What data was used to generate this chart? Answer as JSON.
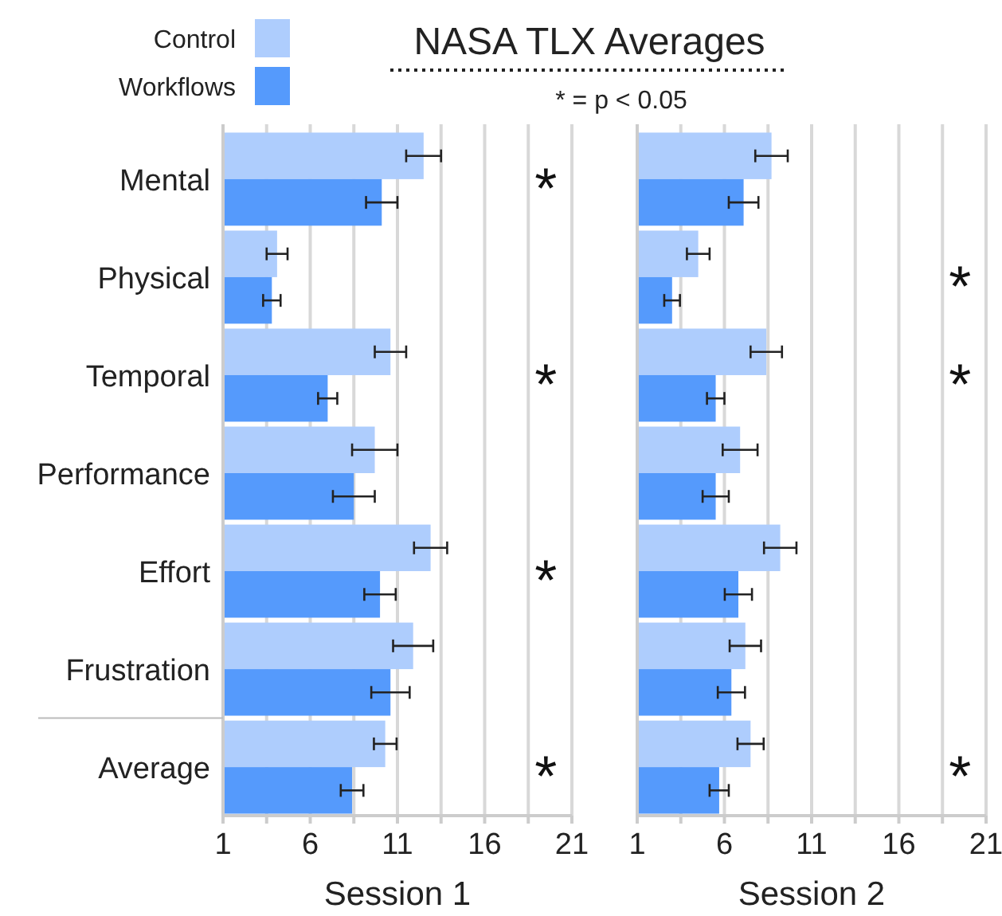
{
  "chart_data": [
    {
      "type": "bar",
      "orientation": "horizontal",
      "title": "NASA TLX Averages",
      "xlabel": "Session 1",
      "categories": [
        "Mental",
        "Physical",
        "Temporal",
        "Performance",
        "Effort",
        "Frustration",
        "Average"
      ],
      "series": [
        {
          "name": "Control",
          "color": "#aecdfd",
          "values": [
            12.5,
            4.1,
            10.6,
            9.7,
            12.9,
            11.9,
            10.3
          ],
          "errors": [
            1.0,
            0.6,
            0.9,
            1.3,
            0.95,
            1.15,
            0.65
          ]
        },
        {
          "name": "Workflows",
          "color": "#559afc",
          "values": [
            10.1,
            3.8,
            7.0,
            8.5,
            10.0,
            10.6,
            8.4
          ],
          "errors": [
            0.9,
            0.5,
            0.55,
            1.2,
            0.9,
            1.1,
            0.65
          ]
        }
      ],
      "xlim": [
        1,
        21
      ],
      "xticks": [
        1,
        {
          "value": 3.5,
          "label": null
        },
        6,
        {
          "value": 8.5,
          "label": null
        },
        11,
        {
          "value": 13.5,
          "label": null
        },
        16,
        {
          "value": 18.5,
          "label": null
        },
        21
      ],
      "grid": "x",
      "legend": "top left",
      "annotations": [
        "* = p < 0.05",
        "*",
        "*",
        "*",
        "*"
      ]
    },
    {
      "type": "bar",
      "orientation": "horizontal",
      "xlabel": "Session 2",
      "categories": [
        null,
        null,
        null,
        null,
        null,
        null,
        null
      ],
      "series": [
        {
          "color": "#aecdfd",
          "values": [
            8.7,
            4.5,
            8.4,
            6.9,
            9.2,
            7.2,
            7.5
          ],
          "errors": [
            0.93,
            0.65,
            0.9,
            1.0,
            0.93,
            0.9,
            0.75
          ]
        },
        {
          "color": "#559afc",
          "values": [
            7.1,
            3.0,
            5.5,
            5.5,
            6.8,
            6.4,
            5.7
          ],
          "errors": [
            0.85,
            0.45,
            0.5,
            0.75,
            0.78,
            0.78,
            0.55
          ]
        }
      ],
      "xlim": [
        1,
        21
      ],
      "xticks": [
        1,
        {
          "value": 3.5,
          "label": null
        },
        6,
        {
          "value": 8.5,
          "label": null
        },
        11,
        {
          "value": 13.5,
          "label": null
        },
        16,
        {
          "value": 18.5,
          "label": null
        },
        21
      ],
      "grid": "x",
      "tick_labels": "x",
      "annotations": [
        "*",
        "*",
        "*"
      ]
    }
  ]
}
